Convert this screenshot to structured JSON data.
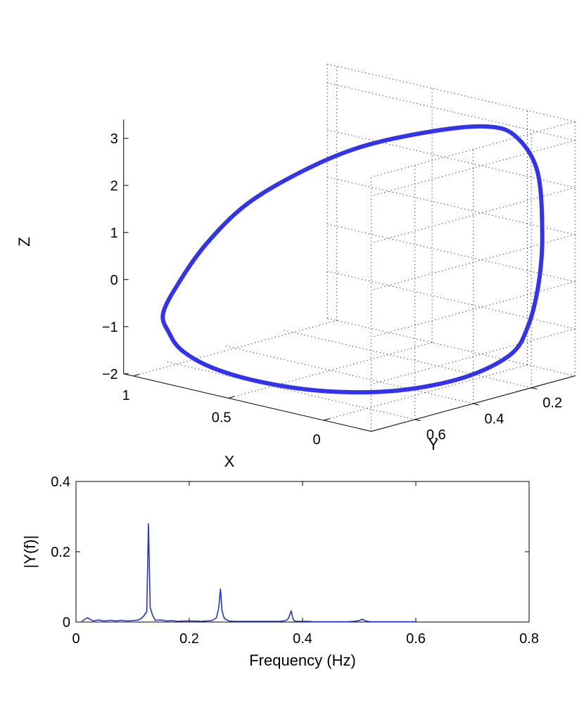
{
  "chart_data": [
    {
      "type": "line3d",
      "xlabel": "X",
      "ylabel": "Y",
      "zlabel": "Z",
      "x_ticks": [
        "0",
        "0.5",
        "1"
      ],
      "y_ticks": [
        "0.2",
        "0.4",
        "0.6"
      ],
      "z_ticks": [
        "−2",
        "−1",
        "0",
        "1",
        "2",
        "3"
      ],
      "xlim": [
        -0.25,
        1.05
      ],
      "ylim": [
        0.05,
        0.75
      ],
      "zlim": [
        -2,
        3.4
      ],
      "grid": true,
      "line_color": "#3333ee",
      "points": [
        {
          "x": 0.98,
          "y": 0.66,
          "z": -0.8
        },
        {
          "x": 0.97,
          "y": 0.61,
          "z": -0.2
        },
        {
          "x": 0.92,
          "y": 0.55,
          "z": 0.55
        },
        {
          "x": 0.82,
          "y": 0.48,
          "z": 1.35
        },
        {
          "x": 0.66,
          "y": 0.4,
          "z": 2.05
        },
        {
          "x": 0.46,
          "y": 0.32,
          "z": 2.65
        },
        {
          "x": 0.22,
          "y": 0.22,
          "z": 3.05
        },
        {
          "x": 0.05,
          "y": 0.15,
          "z": 3.18
        },
        {
          "x": -0.05,
          "y": 0.12,
          "z": 3.0
        },
        {
          "x": -0.13,
          "y": 0.1,
          "z": 2.3
        },
        {
          "x": -0.17,
          "y": 0.11,
          "z": 1.0
        },
        {
          "x": -0.18,
          "y": 0.13,
          "z": 0.0
        },
        {
          "x": -0.17,
          "y": 0.16,
          "z": -0.85
        },
        {
          "x": -0.14,
          "y": 0.2,
          "z": -1.4
        },
        {
          "x": -0.05,
          "y": 0.3,
          "z": -1.8
        },
        {
          "x": 0.1,
          "y": 0.43,
          "z": -2.0
        },
        {
          "x": 0.3,
          "y": 0.54,
          "z": -2.02
        },
        {
          "x": 0.52,
          "y": 0.61,
          "z": -1.93
        },
        {
          "x": 0.73,
          "y": 0.65,
          "z": -1.75
        },
        {
          "x": 0.88,
          "y": 0.66,
          "z": -1.5
        },
        {
          "x": 0.95,
          "y": 0.66,
          "z": -1.18
        },
        {
          "x": 0.98,
          "y": 0.66,
          "z": -0.8
        }
      ]
    },
    {
      "type": "line",
      "xlabel": "Frequency (Hz)",
      "ylabel": "|Y(f)|",
      "xlim": [
        0,
        0.8
      ],
      "ylim": [
        0,
        0.4
      ],
      "x_ticks": [
        "0",
        "0.2",
        "0.4",
        "0.6",
        "0.8"
      ],
      "y_ticks": [
        "0",
        "0.2",
        "0.4"
      ],
      "line_color": "#2233cc",
      "x": [
        0.01,
        0.02,
        0.025,
        0.03,
        0.04,
        0.05,
        0.06,
        0.07,
        0.08,
        0.09,
        0.1,
        0.11,
        0.115,
        0.12,
        0.125,
        0.128,
        0.131,
        0.135,
        0.14,
        0.15,
        0.16,
        0.17,
        0.18,
        0.19,
        0.2,
        0.21,
        0.22,
        0.23,
        0.24,
        0.248,
        0.252,
        0.255,
        0.258,
        0.262,
        0.27,
        0.28,
        0.29,
        0.3,
        0.31,
        0.32,
        0.33,
        0.34,
        0.35,
        0.36,
        0.37,
        0.375,
        0.38,
        0.383,
        0.386,
        0.39,
        0.4,
        0.41,
        0.42,
        0.43,
        0.44,
        0.45,
        0.46,
        0.47,
        0.48,
        0.49,
        0.5,
        0.505,
        0.51,
        0.515,
        0.52,
        0.53,
        0.54,
        0.55,
        0.56,
        0.57,
        0.58,
        0.59,
        0.6
      ],
      "y": [
        0.002,
        0.012,
        0.008,
        0.003,
        0.006,
        0.003,
        0.005,
        0.003,
        0.005,
        0.003,
        0.004,
        0.006,
        0.01,
        0.018,
        0.03,
        0.28,
        0.04,
        0.02,
        0.005,
        0.006,
        0.003,
        0.004,
        0.002,
        0.003,
        0.003,
        0.003,
        0.002,
        0.003,
        0.004,
        0.012,
        0.04,
        0.094,
        0.03,
        0.01,
        0.003,
        0.002,
        0.002,
        0.002,
        0.002,
        0.002,
        0.002,
        0.002,
        0.002,
        0.002,
        0.004,
        0.01,
        0.032,
        0.01,
        0.003,
        0.002,
        0.002,
        0.002,
        0.001,
        0.001,
        0.001,
        0.001,
        0.001,
        0.001,
        0.001,
        0.002,
        0.004,
        0.008,
        0.004,
        0.002,
        0.001,
        0.001,
        0.001,
        0.001,
        0.001,
        0.001,
        0.001,
        0.001,
        0.001
      ]
    }
  ]
}
